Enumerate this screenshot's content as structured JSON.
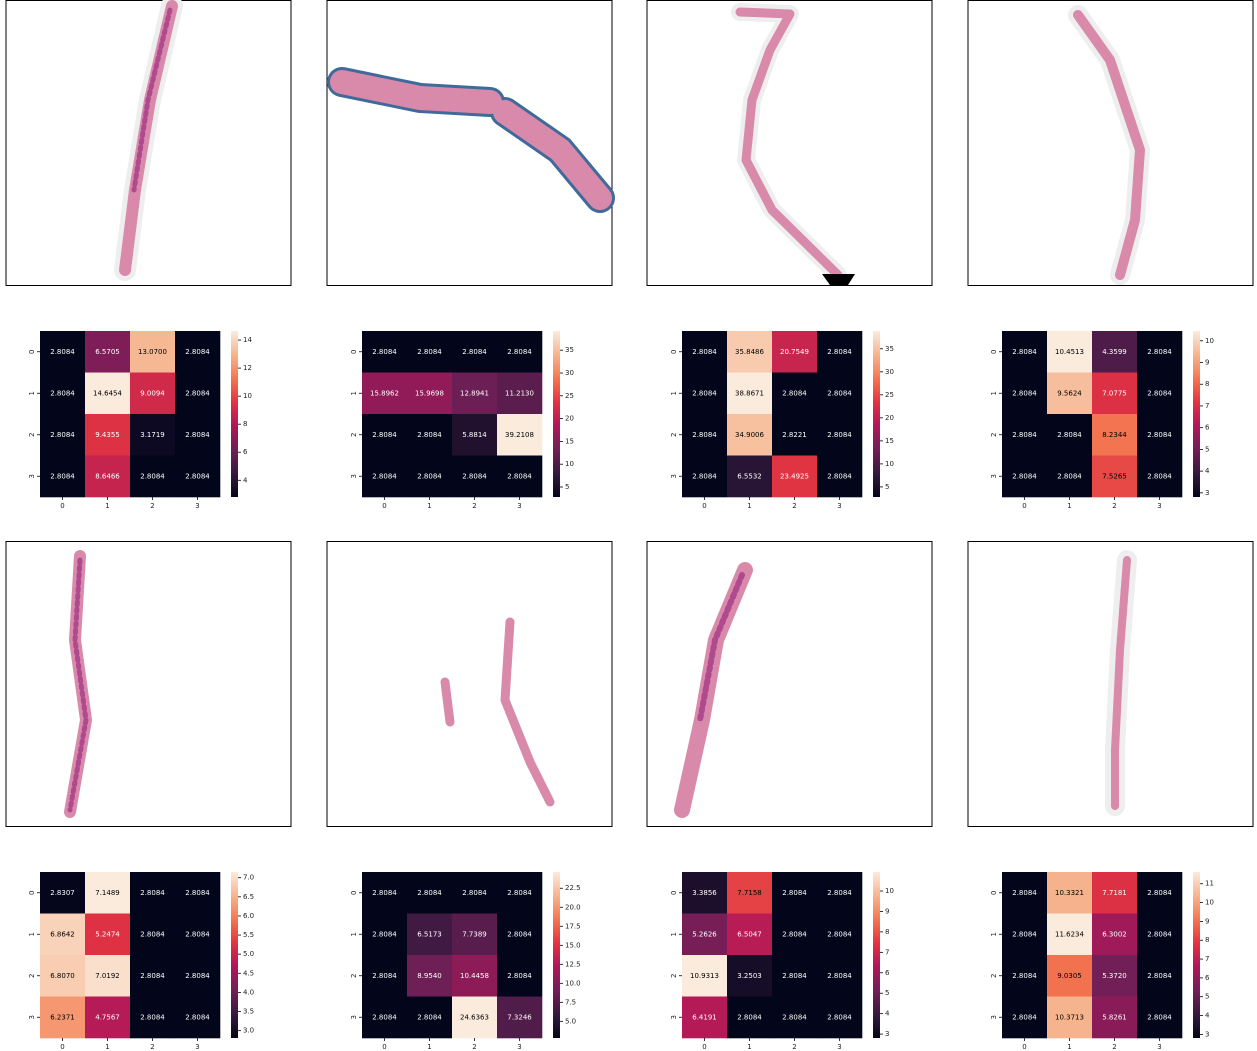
{
  "chart_data": [
    {
      "type": "heatmap",
      "x_categories": [
        "0",
        "1",
        "2",
        "3"
      ],
      "y_categories": [
        "0",
        "1",
        "2",
        "3"
      ],
      "values": [
        [
          2.8084,
          6.5705,
          13.07,
          2.8084
        ],
        [
          2.8084,
          14.6454,
          9.0094,
          2.8084
        ],
        [
          2.8084,
          9.4355,
          3.1719,
          2.8084
        ],
        [
          2.8084,
          8.6466,
          2.8084,
          2.8084
        ]
      ],
      "value_labels": [
        [
          "2.8084",
          "6.5705",
          "13.0700",
          "2.8084"
        ],
        [
          "2.8084",
          "14.6454",
          "9.0094",
          "2.8084"
        ],
        [
          "2.8084",
          "9.4355",
          "3.1719",
          "2.8084"
        ],
        [
          "2.8084",
          "8.6466",
          "2.8084",
          "2.8084"
        ]
      ],
      "zlim": [
        2.8084,
        14.6454
      ],
      "zticks": [
        4,
        6,
        8,
        10,
        12,
        14
      ],
      "colormap": [
        "#03051a",
        "#36193e",
        "#701f57",
        "#ae1759",
        "#e13342",
        "#f37651",
        "#f6b48e",
        "#faebdd"
      ]
    },
    {
      "type": "heatmap",
      "x_categories": [
        "0",
        "1",
        "2",
        "3"
      ],
      "y_categories": [
        "0",
        "1",
        "2",
        "3"
      ],
      "values": [
        [
          2.8084,
          2.8084,
          2.8084,
          2.8084
        ],
        [
          15.8962,
          15.9698,
          12.8941,
          11.213
        ],
        [
          2.8084,
          2.8084,
          5.8814,
          39.2108
        ],
        [
          2.8084,
          2.8084,
          2.8084,
          2.8084
        ]
      ],
      "value_labels": [
        [
          "2.8084",
          "2.8084",
          "2.8084",
          "2.8084"
        ],
        [
          "15.8962",
          "15.9698",
          "12.8941",
          "11.2130"
        ],
        [
          "2.8084",
          "2.8084",
          "5.8814",
          "39.2108"
        ],
        [
          "2.8084",
          "2.8084",
          "2.8084",
          "2.8084"
        ]
      ],
      "zlim": [
        2.8084,
        39.2108
      ],
      "zticks": [
        5,
        10,
        15,
        20,
        25,
        30,
        35
      ],
      "colormap": [
        "#03051a",
        "#36193e",
        "#701f57",
        "#ae1759",
        "#e13342",
        "#f37651",
        "#f6b48e",
        "#faebdd"
      ]
    },
    {
      "type": "heatmap",
      "x_categories": [
        "0",
        "1",
        "2",
        "3"
      ],
      "y_categories": [
        "0",
        "1",
        "2",
        "3"
      ],
      "values": [
        [
          2.8084,
          35.8486,
          20.7549,
          2.8084
        ],
        [
          2.8084,
          38.8671,
          2.8084,
          2.8084
        ],
        [
          2.8084,
          34.9006,
          2.8221,
          2.8084
        ],
        [
          2.8084,
          6.5532,
          23.4925,
          2.8084
        ]
      ],
      "value_labels": [
        [
          "2.8084",
          "35.8486",
          "20.7549",
          "2.8084"
        ],
        [
          "2.8084",
          "38.8671",
          "2.8084",
          "2.8084"
        ],
        [
          "2.8084",
          "34.9006",
          "2.8221",
          "2.8084"
        ],
        [
          "2.8084",
          "6.5532",
          "23.4925",
          "2.8084"
        ]
      ],
      "zlim": [
        2.8084,
        38.8671
      ],
      "zticks": [
        5,
        10,
        15,
        20,
        25,
        30,
        35
      ],
      "colormap": [
        "#03051a",
        "#36193e",
        "#701f57",
        "#ae1759",
        "#e13342",
        "#f37651",
        "#f6b48e",
        "#faebdd"
      ]
    },
    {
      "type": "heatmap",
      "x_categories": [
        "0",
        "1",
        "2",
        "3"
      ],
      "y_categories": [
        "0",
        "1",
        "2",
        "3"
      ],
      "values": [
        [
          2.8084,
          10.4513,
          4.3599,
          2.8084
        ],
        [
          2.8084,
          9.5624,
          7.0775,
          2.8084
        ],
        [
          2.8084,
          2.8084,
          8.2344,
          2.8084
        ],
        [
          2.8084,
          2.8084,
          7.5265,
          2.8084
        ]
      ],
      "value_labels": [
        [
          "2.8084",
          "10.4513",
          "4.3599",
          "2.8084"
        ],
        [
          "2.8084",
          "9.5624",
          "7.0775",
          "2.8084"
        ],
        [
          "2.8084",
          "2.8084",
          "8.2344",
          "2.8084"
        ],
        [
          "2.8084",
          "2.8084",
          "7.5265",
          "2.8084"
        ]
      ],
      "zlim": [
        2.8084,
        10.4513
      ],
      "zticks": [
        3,
        4,
        5,
        6,
        7,
        8,
        9,
        10
      ],
      "colormap": [
        "#03051a",
        "#36193e",
        "#701f57",
        "#ae1759",
        "#e13342",
        "#f37651",
        "#f6b48e",
        "#faebdd"
      ]
    },
    {
      "type": "heatmap",
      "x_categories": [
        "0",
        "1",
        "2",
        "3"
      ],
      "y_categories": [
        "0",
        "1",
        "2",
        "3"
      ],
      "values": [
        [
          2.8307,
          7.1489,
          2.8084,
          2.8084
        ],
        [
          6.8642,
          5.2474,
          2.8084,
          2.8084
        ],
        [
          6.807,
          7.0192,
          2.8084,
          2.8084
        ],
        [
          6.2371,
          4.7567,
          2.8084,
          2.8084
        ]
      ],
      "value_labels": [
        [
          "2.8307",
          "7.1489",
          "2.8084",
          "2.8084"
        ],
        [
          "6.8642",
          "5.2474",
          "2.8084",
          "2.8084"
        ],
        [
          "6.8070",
          "7.0192",
          "2.8084",
          "2.8084"
        ],
        [
          "6.2371",
          "4.7567",
          "2.8084",
          "2.8084"
        ]
      ],
      "zlim": [
        2.8084,
        7.1489
      ],
      "zticks": [
        {
          "value": 3,
          "label": "3.0"
        },
        3.5,
        {
          "value": 4,
          "label": "4.0"
        },
        4.5,
        {
          "value": 5,
          "label": "5.0"
        },
        5.5,
        {
          "value": 6,
          "label": "6.0"
        },
        6.5,
        {
          "value": 7,
          "label": "7.0"
        }
      ],
      "colormap": [
        "#03051a",
        "#36193e",
        "#701f57",
        "#ae1759",
        "#e13342",
        "#f37651",
        "#f6b48e",
        "#faebdd"
      ]
    },
    {
      "type": "heatmap",
      "x_categories": [
        "0",
        "1",
        "2",
        "3"
      ],
      "y_categories": [
        "0",
        "1",
        "2",
        "3"
      ],
      "values": [
        [
          2.8084,
          2.8084,
          2.8084,
          2.8084
        ],
        [
          2.8084,
          6.5173,
          7.7389,
          2.8084
        ],
        [
          2.8084,
          8.954,
          10.4458,
          2.8084
        ],
        [
          2.8084,
          2.8084,
          24.6363,
          7.3246
        ]
      ],
      "value_labels": [
        [
          "2.8084",
          "2.8084",
          "2.8084",
          "2.8084"
        ],
        [
          "2.8084",
          "6.5173",
          "7.7389",
          "2.8084"
        ],
        [
          "2.8084",
          "8.9540",
          "10.4458",
          "2.8084"
        ],
        [
          "2.8084",
          "2.8084",
          "24.6363",
          "7.3246"
        ]
      ],
      "zlim": [
        2.8084,
        24.6363
      ],
      "zticks": [
        {
          "value": 5,
          "label": "5.0"
        },
        7.5,
        {
          "value": 10,
          "label": "10.0"
        },
        12.5,
        {
          "value": 15,
          "label": "15.0"
        },
        17.5,
        {
          "value": 20,
          "label": "20.0"
        },
        22.5
      ],
      "colormap": [
        "#03051a",
        "#36193e",
        "#701f57",
        "#ae1759",
        "#e13342",
        "#f37651",
        "#f6b48e",
        "#faebdd"
      ]
    },
    {
      "type": "heatmap",
      "x_categories": [
        "0",
        "1",
        "2",
        "3"
      ],
      "y_categories": [
        "0",
        "1",
        "2",
        "3"
      ],
      "values": [
        [
          3.3856,
          7.7158,
          2.8084,
          2.8084
        ],
        [
          5.2626,
          6.5047,
          2.8084,
          2.8084
        ],
        [
          10.9313,
          3.2503,
          2.8084,
          2.8084
        ],
        [
          6.4191,
          2.8084,
          2.8084,
          2.8084
        ]
      ],
      "value_labels": [
        [
          "3.3856",
          "7.7158",
          "2.8084",
          "2.8084"
        ],
        [
          "5.2626",
          "6.5047",
          "2.8084",
          "2.8084"
        ],
        [
          "10.9313",
          "3.2503",
          "2.8084",
          "2.8084"
        ],
        [
          "6.4191",
          "2.8084",
          "2.8084",
          "2.8084"
        ]
      ],
      "zlim": [
        2.8084,
        10.9313
      ],
      "zticks": [
        3,
        4,
        5,
        6,
        7,
        8,
        9,
        10
      ],
      "colormap": [
        "#03051a",
        "#36193e",
        "#701f57",
        "#ae1759",
        "#e13342",
        "#f37651",
        "#f6b48e",
        "#faebdd"
      ]
    },
    {
      "type": "heatmap",
      "x_categories": [
        "0",
        "1",
        "2",
        "3"
      ],
      "y_categories": [
        "0",
        "1",
        "2",
        "3"
      ],
      "values": [
        [
          2.8084,
          10.3321,
          7.7181,
          2.8084
        ],
        [
          2.8084,
          11.6234,
          6.3002,
          2.8084
        ],
        [
          2.8084,
          9.0305,
          5.372,
          2.8084
        ],
        [
          2.8084,
          10.3713,
          5.8261,
          2.8084
        ]
      ],
      "value_labels": [
        [
          "2.8084",
          "10.3321",
          "7.7181",
          "2.8084"
        ],
        [
          "2.8084",
          "11.6234",
          "6.3002",
          "2.8084"
        ],
        [
          "2.8084",
          "9.0305",
          "5.3720",
          "2.8084"
        ],
        [
          "2.8084",
          "10.3713",
          "5.8261",
          "2.8084"
        ]
      ],
      "zlim": [
        2.8084,
        11.6234
      ],
      "zticks": [
        3,
        4,
        5,
        6,
        7,
        8,
        9,
        10,
        11
      ],
      "colormap": [
        "#03051a",
        "#36193e",
        "#701f57",
        "#ae1759",
        "#e13342",
        "#f37651",
        "#f6b48e",
        "#faebdd"
      ]
    }
  ]
}
